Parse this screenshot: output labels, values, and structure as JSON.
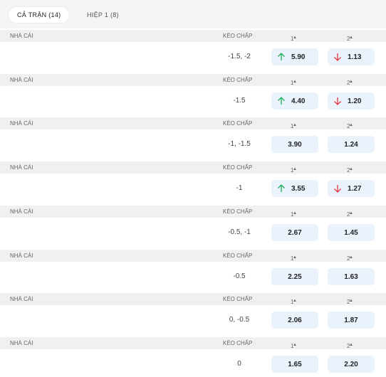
{
  "tabs": [
    {
      "label": "CẢ TRẬN (14)",
      "active": true
    },
    {
      "label": "HIỆP 1 (8)",
      "active": false
    }
  ],
  "columns": {
    "bookmaker": "NHÀ CÁI",
    "handicap": "KÈO CHẤP",
    "home": "1",
    "away": "2"
  },
  "rows": [
    {
      "handicap": "-1.5, -2",
      "home": {
        "odds": "5.90",
        "move": "up"
      },
      "away": {
        "odds": "1.13",
        "move": "down"
      }
    },
    {
      "handicap": "-1.5",
      "home": {
        "odds": "4.40",
        "move": "up"
      },
      "away": {
        "odds": "1.20",
        "move": "down"
      }
    },
    {
      "handicap": "-1, -1.5",
      "home": {
        "odds": "3.90"
      },
      "away": {
        "odds": "1.24"
      }
    },
    {
      "handicap": "-1",
      "home": {
        "odds": "3.55",
        "move": "up"
      },
      "away": {
        "odds": "1.27",
        "move": "down"
      }
    },
    {
      "handicap": "-0.5, -1",
      "home": {
        "odds": "2.67"
      },
      "away": {
        "odds": "1.45"
      }
    },
    {
      "handicap": "-0.5",
      "home": {
        "odds": "2.25"
      },
      "away": {
        "odds": "1.63"
      }
    },
    {
      "handicap": "0, -0.5",
      "home": {
        "odds": "2.06"
      },
      "away": {
        "odds": "1.87"
      }
    },
    {
      "handicap": "0",
      "home": {
        "odds": "1.65"
      },
      "away": {
        "odds": "2.20"
      }
    }
  ]
}
